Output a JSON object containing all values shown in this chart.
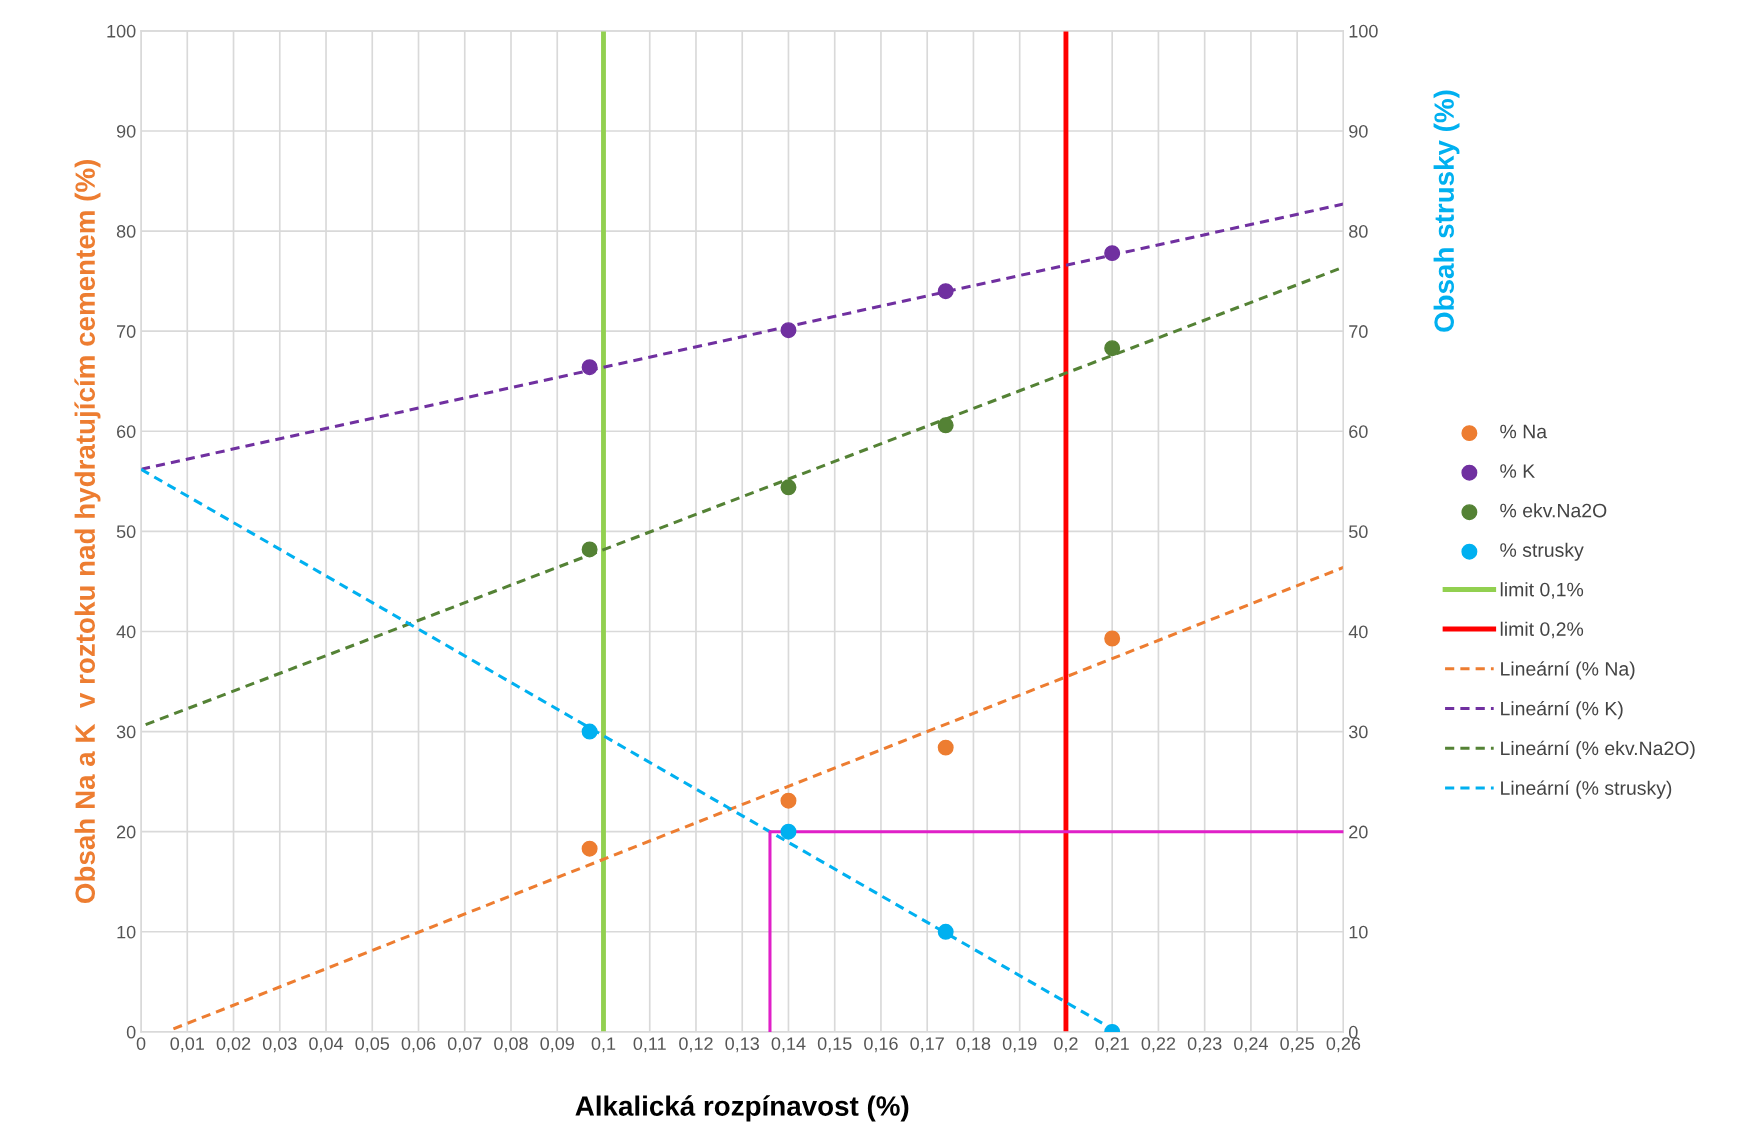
{
  "chart_data": {
    "type": "scatter",
    "xlabel": "Alkalická rozpínavost (%)",
    "ylabel": "Obsah Na a K  v roztoku nad hydratujícím cementem (%)",
    "y2label": "Obsah strusky (%)",
    "xlim": [
      0,
      0.26
    ],
    "ylim": [
      0,
      100
    ],
    "y2lim": [
      0,
      100
    ],
    "xticks": [
      0,
      {
        "value": 0.01,
        "label": "0,01"
      },
      {
        "value": 0.02,
        "label": "0,02"
      },
      {
        "value": 0.03,
        "label": "0,03"
      },
      {
        "value": 0.04,
        "label": "0,04"
      },
      {
        "value": 0.05,
        "label": "0,05"
      },
      {
        "value": 0.06,
        "label": "0,06"
      },
      {
        "value": 0.07,
        "label": "0,07"
      },
      {
        "value": 0.08,
        "label": "0,08"
      },
      {
        "value": 0.09,
        "label": "0,09"
      },
      {
        "value": 0.1,
        "label": "0,1"
      },
      {
        "value": 0.11,
        "label": "0,11"
      },
      {
        "value": 0.12,
        "label": "0,12"
      },
      {
        "value": 0.13,
        "label": "0,13"
      },
      {
        "value": 0.14,
        "label": "0,14"
      },
      {
        "value": 0.15,
        "label": "0,15"
      },
      {
        "value": 0.16,
        "label": "0,16"
      },
      {
        "value": 0.17,
        "label": "0,17"
      },
      {
        "value": 0.18,
        "label": "0,18"
      },
      {
        "value": 0.19,
        "label": "0,19"
      },
      {
        "value": 0.2,
        "label": "0,2"
      },
      {
        "value": 0.21,
        "label": "0,21"
      },
      {
        "value": 0.22,
        "label": "0,22"
      },
      {
        "value": 0.23,
        "label": "0,23"
      },
      {
        "value": 0.24,
        "label": "0,24"
      },
      {
        "value": 0.25,
        "label": "0,25"
      },
      {
        "value": 0.26,
        "label": "0,26"
      }
    ],
    "yticks": [
      0,
      10,
      20,
      30,
      40,
      50,
      60,
      70,
      80,
      90,
      100
    ],
    "y2ticks": [
      0,
      10,
      20,
      30,
      40,
      50,
      60,
      70,
      80,
      90,
      100
    ],
    "grid": true,
    "legend": "right",
    "marker": "circle",
    "series": [
      {
        "name": "% Na",
        "color": "#ed7d31",
        "x": [
          0.097,
          0.14,
          0.174,
          0.21
        ],
        "values": [
          18.3,
          23.1,
          28.4,
          39.3
        ]
      },
      {
        "name": "% K",
        "color": "#7030a0",
        "x": [
          0.097,
          0.14,
          0.174,
          0.21
        ],
        "values": [
          66.4,
          70.1,
          74.0,
          77.8
        ]
      },
      {
        "name": "% ekv.Na2O",
        "color": "#548235",
        "x": [
          0.097,
          0.14,
          0.174,
          0.21
        ],
        "values": [
          48.2,
          54.4,
          60.6,
          68.3
        ]
      },
      {
        "name": "% strusky",
        "color": "#00b0f0",
        "axis": "y2",
        "x": [
          0.097,
          0.14,
          0.174,
          0.21
        ],
        "values": [
          30,
          20,
          10,
          0
        ]
      },
      {
        "name": "limit 0,1%",
        "type": "line",
        "line_style": "solid",
        "marker": "none",
        "color": "#92d050",
        "x": [
          0.1,
          0.1
        ],
        "values": [
          0,
          100
        ]
      },
      {
        "name": "limit 0,2%",
        "type": "line",
        "line_style": "solid",
        "marker": "none",
        "color": "#ff0000",
        "x": [
          0.2,
          0.2
        ],
        "values": [
          0,
          100
        ]
      },
      {
        "name": "Lineární (% Na)",
        "type": "line",
        "line_style": "dashed",
        "marker": "none",
        "color": "#ed7d31",
        "x": [
          0.007,
          0.26
        ],
        "values": [
          0.3,
          46.4
        ]
      },
      {
        "name": "Lineární (% K)",
        "type": "line",
        "line_style": "dashed",
        "marker": "none",
        "color": "#7030a0",
        "x": [
          0,
          0.26
        ],
        "values": [
          56.2,
          82.7
        ]
      },
      {
        "name": "Lineární (% ekv.Na2O)",
        "type": "line",
        "line_style": "dashed",
        "marker": "none",
        "color": "#548235",
        "x": [
          0.001,
          0.26
        ],
        "values": [
          30.7,
          76.4
        ]
      },
      {
        "name": "Lineární (% strusky)",
        "type": "line",
        "line_style": "dashed",
        "marker": "none",
        "color": "#00b0f0",
        "axis": "y2",
        "x": [
          0,
          0.21
        ],
        "values": [
          56.2,
          0.3
        ]
      },
      {
        "type": "line",
        "line_style": "solid",
        "marker": "none",
        "color": "#e020c8",
        "axis": "y2",
        "x": [
          0.26,
          0.136,
          0.136
        ],
        "values": [
          20,
          20,
          0
        ]
      }
    ]
  }
}
